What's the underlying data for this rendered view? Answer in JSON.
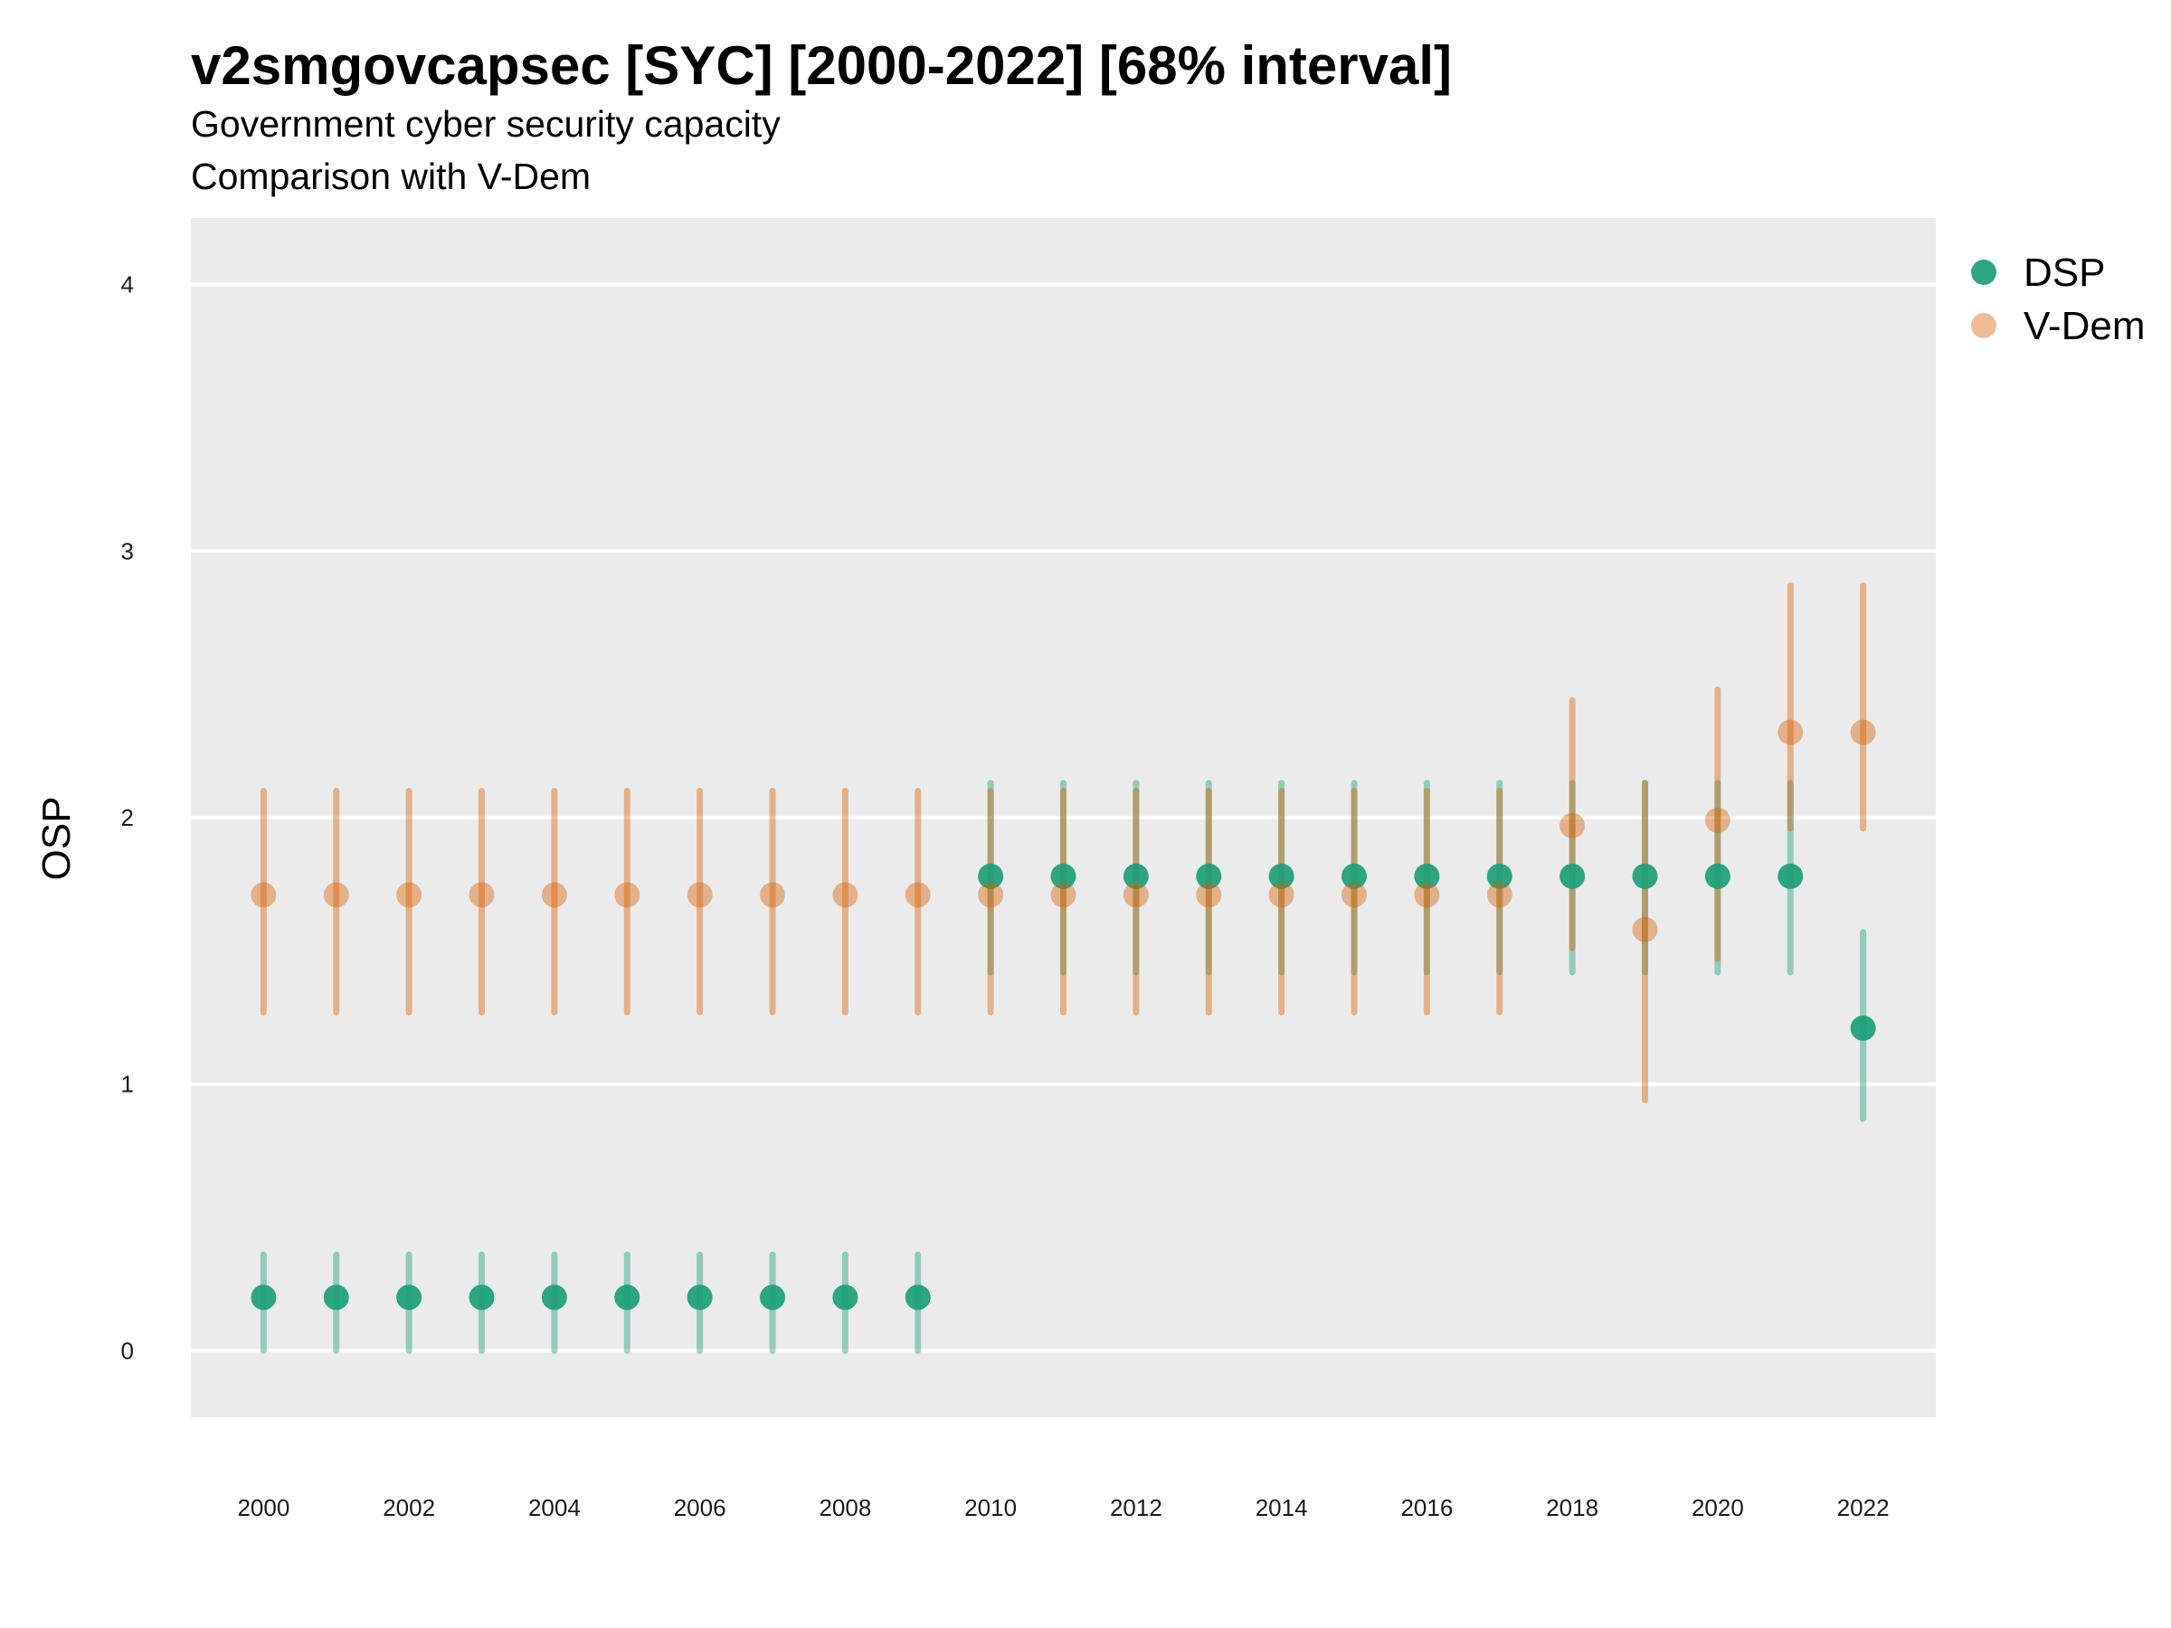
{
  "chart_data": {
    "type": "scatter",
    "title": "v2smgovcapsec [SYC] [2000-2022] [68% interval]",
    "subtitle": "Government cyber security capacity",
    "subtitle2": "Comparison with V-Dem",
    "ylabel": "OSP",
    "xlabel": "",
    "ylim": [
      -0.25,
      4.25
    ],
    "xlim": [
      1999,
      2023
    ],
    "grid": true,
    "legend_position": "right",
    "y_ticks": [
      0,
      1,
      2,
      3,
      4
    ],
    "x_ticks": [
      2000,
      2002,
      2004,
      2006,
      2008,
      2010,
      2012,
      2014,
      2016,
      2018,
      2020,
      2022
    ],
    "x": [
      2000,
      2001,
      2002,
      2003,
      2004,
      2005,
      2006,
      2007,
      2008,
      2009,
      2010,
      2011,
      2012,
      2013,
      2014,
      2015,
      2016,
      2017,
      2018,
      2019,
      2020,
      2021,
      2022
    ],
    "series": [
      {
        "name": "DSP",
        "color": "#1b9e77",
        "values": [
          0.2,
          0.2,
          0.2,
          0.2,
          0.2,
          0.2,
          0.2,
          0.2,
          0.2,
          0.2,
          1.78,
          1.78,
          1.78,
          1.78,
          1.78,
          1.78,
          1.78,
          1.78,
          1.78,
          1.78,
          1.78,
          1.78,
          1.21
        ],
        "lower": [
          0.0,
          0.0,
          0.0,
          0.0,
          0.0,
          0.0,
          0.0,
          0.0,
          0.0,
          0.0,
          1.42,
          1.42,
          1.42,
          1.42,
          1.42,
          1.42,
          1.42,
          1.42,
          1.42,
          1.42,
          1.42,
          1.42,
          0.87
        ],
        "upper": [
          0.36,
          0.36,
          0.36,
          0.36,
          0.36,
          0.36,
          0.36,
          0.36,
          0.36,
          0.36,
          2.13,
          2.13,
          2.13,
          2.13,
          2.13,
          2.13,
          2.13,
          2.13,
          2.13,
          2.13,
          2.13,
          2.13,
          1.57
        ]
      },
      {
        "name": "V-Dem",
        "color": "#d95f02",
        "values": [
          1.71,
          1.71,
          1.71,
          1.71,
          1.71,
          1.71,
          1.71,
          1.71,
          1.71,
          1.71,
          1.71,
          1.71,
          1.71,
          1.71,
          1.71,
          1.71,
          1.71,
          1.71,
          1.97,
          1.58,
          1.99,
          2.32,
          2.32
        ],
        "lower": [
          1.27,
          1.27,
          1.27,
          1.27,
          1.27,
          1.27,
          1.27,
          1.27,
          1.27,
          1.27,
          1.27,
          1.27,
          1.27,
          1.27,
          1.27,
          1.27,
          1.27,
          1.27,
          1.51,
          0.94,
          1.47,
          1.96,
          1.96
        ],
        "upper": [
          2.1,
          2.1,
          2.1,
          2.1,
          2.1,
          2.1,
          2.1,
          2.1,
          2.1,
          2.1,
          2.1,
          2.1,
          2.1,
          2.1,
          2.1,
          2.1,
          2.1,
          2.1,
          2.44,
          2.13,
          2.48,
          2.87,
          2.87
        ]
      }
    ]
  }
}
